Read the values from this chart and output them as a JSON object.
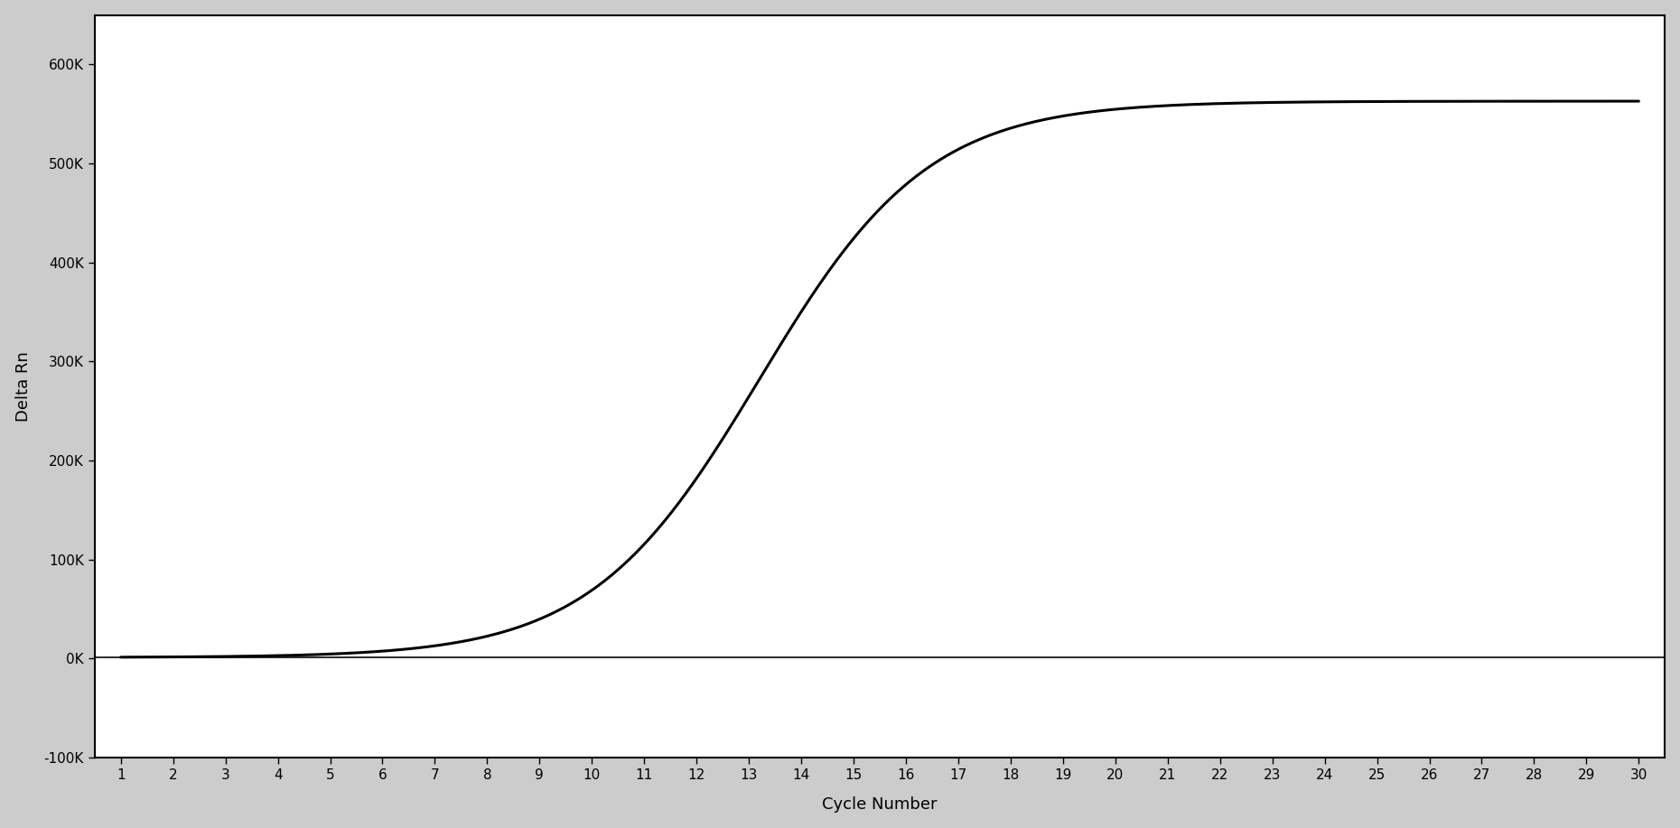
{
  "title": "",
  "xlabel": "Cycle Number",
  "ylabel": "Delta Rn",
  "xlim": [
    0.5,
    30.5
  ],
  "ylim": [
    -100000,
    650000
  ],
  "yticks": [
    -100000,
    0,
    100000,
    200000,
    300000,
    400000,
    500000,
    600000
  ],
  "ytick_labels": [
    "-100K",
    "0K",
    "100K",
    "200K",
    "300K",
    "400K",
    "500K",
    "600K"
  ],
  "xticks": [
    1,
    2,
    3,
    4,
    5,
    6,
    7,
    8,
    9,
    10,
    11,
    12,
    13,
    14,
    15,
    16,
    17,
    18,
    19,
    20,
    21,
    22,
    23,
    24,
    25,
    26,
    27,
    28,
    29,
    30
  ],
  "line_color": "#000000",
  "line_width": 2.2,
  "outer_background_color": "#d8d8d8",
  "plot_bg_color": "#ffffff",
  "sigmoid_L": 562000,
  "sigmoid_k": 0.62,
  "sigmoid_x0": 13.2,
  "sigmoid_baseline": 1000,
  "tick_fontsize": 11,
  "label_fontsize": 13
}
